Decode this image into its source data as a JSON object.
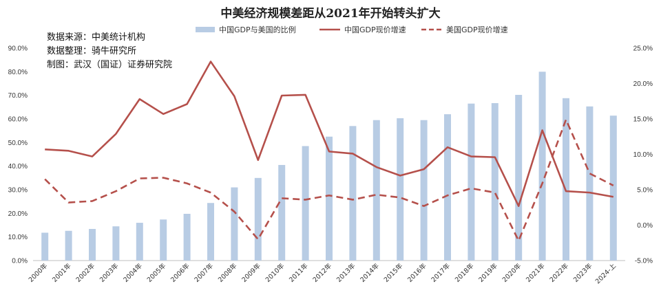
{
  "notes": [
    "数据来源：中美统计机构",
    "数据整理：骑牛研究所",
    "制图：武汉（国证）证券研究院"
  ],
  "chart_data": {
    "type": "bar",
    "title": "中美经济规模差距从2021年开始转头扩大",
    "categories": [
      "2000年",
      "2001年",
      "2002年",
      "2003年",
      "2004年",
      "2005年",
      "2006年",
      "2007年",
      "2008年",
      "2009年",
      "2010年",
      "2011年",
      "2012年",
      "2013年",
      "2014年",
      "2015年",
      "2016年",
      "2017年",
      "2018年",
      "2019年",
      "2020年",
      "2021年",
      "2022年",
      "2023年",
      "2024-上"
    ],
    "series": [
      {
        "name": "中国GDP与美国的比例",
        "type": "bar",
        "axis": "left",
        "color": "#b8cce4",
        "values": [
          11.8,
          12.6,
          13.4,
          14.5,
          16.0,
          17.4,
          19.8,
          24.4,
          31.0,
          35.0,
          40.5,
          48.5,
          52.5,
          57.0,
          59.5,
          60.3,
          59.5,
          62.0,
          66.5,
          66.7,
          70.2,
          80.0,
          68.8,
          65.3,
          61.4
        ]
      },
      {
        "name": "中国GDP现价增速",
        "type": "line",
        "axis": "right",
        "color": "#b5504b",
        "dash": "solid",
        "values": [
          10.7,
          10.5,
          9.7,
          12.9,
          17.8,
          15.7,
          17.1,
          23.1,
          18.2,
          9.2,
          18.3,
          18.4,
          10.4,
          10.1,
          8.2,
          7.0,
          7.9,
          11.0,
          9.7,
          9.6,
          2.7,
          13.4,
          4.8,
          4.6,
          4.0
        ]
      },
      {
        "name": "美国GDP现价增速",
        "type": "line",
        "axis": "right",
        "color": "#b5504b",
        "dash": "dashed",
        "values": [
          6.5,
          3.2,
          3.4,
          4.8,
          6.6,
          6.7,
          5.9,
          4.6,
          1.9,
          -2.0,
          3.8,
          3.6,
          4.2,
          3.6,
          4.3,
          3.9,
          2.7,
          4.2,
          5.2,
          4.6,
          -2.2,
          5.9,
          14.9,
          7.3,
          5.6
        ]
      }
    ],
    "y_left": {
      "min": 0,
      "max": 90,
      "step": 10,
      "suffix": "%",
      "decimals": 1
    },
    "y_right": {
      "min": -5,
      "max": 25,
      "step": 5,
      "suffix": "%",
      "decimals": 1
    },
    "legend_position": "top-center",
    "grid": false
  }
}
